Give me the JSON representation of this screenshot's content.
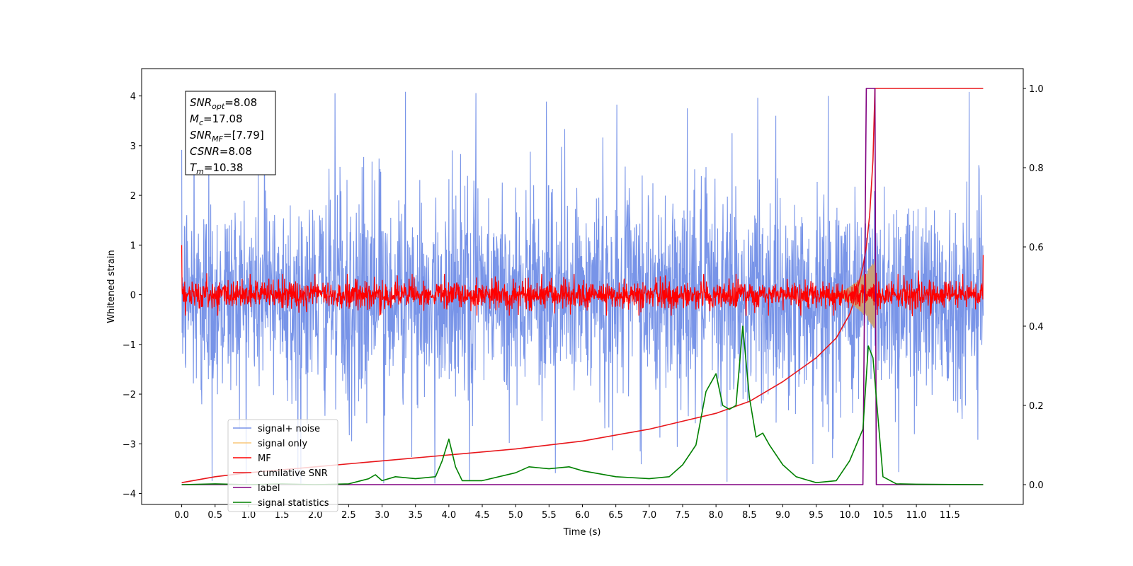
{
  "chart_data": {
    "type": "line",
    "title": "",
    "xlabel": "Time (s)",
    "ylabel": "Whitened strain",
    "xlim": [
      -0.6,
      12.6
    ],
    "ylim": [
      -4.22,
      4.55
    ],
    "y2lim": [
      -0.05,
      1.05
    ],
    "xticks": [
      "0.0",
      "0.5",
      "1.0",
      "1.5",
      "2.0",
      "2.5",
      "3.0",
      "3.5",
      "4.0",
      "4.5",
      "5.0",
      "5.5",
      "6.0",
      "6.5",
      "7.0",
      "7.5",
      "8.0",
      "8.5",
      "9.0",
      "9.5",
      "10.0",
      "10.5",
      "11.0",
      "11.5"
    ],
    "yticks": [
      "−4",
      "−3",
      "−2",
      "−1",
      "0",
      "1",
      "2",
      "3",
      "4"
    ],
    "y2ticks": [
      "0.0",
      "0.2",
      "0.4",
      "0.6",
      "0.8",
      "1.0"
    ],
    "grid": false,
    "legend_position": "lower-left",
    "annotation": {
      "lines": [
        {
          "main": "SNR",
          "sub": "opt",
          "rest": "=8.08"
        },
        {
          "main": "M",
          "sub": "c",
          "rest": "=17.08"
        },
        {
          "main": "SNR",
          "sub": "MF",
          "rest": "=[7.79]"
        },
        {
          "main": "CSNR",
          "sub": "",
          "rest": "=8.08"
        },
        {
          "main": "T",
          "sub": "m",
          "rest": "=10.38"
        }
      ]
    },
    "series": [
      {
        "name": "signal+ noise",
        "color": "#7894e8",
        "axis": "left",
        "kind": "noise",
        "x_range": [
          0,
          12
        ],
        "spread_sigma": 1.0,
        "extreme_range": [
          -3.8,
          4.15
        ]
      },
      {
        "name": "signal only",
        "color": "#f9c77a",
        "axis": "left",
        "kind": "chirp",
        "x_range": [
          9.6,
          10.38
        ],
        "peak_amplitude": 0.7
      },
      {
        "name": "MF",
        "color": "#ff0000",
        "axis": "left",
        "kind": "noise",
        "x_range": [
          0,
          12
        ],
        "spread_sigma": 0.15,
        "start_value": 1.0,
        "end_value": 0.8
      },
      {
        "name": "cumilative SNR",
        "color": "#e8161b",
        "axis": "right",
        "x": [
          0.0,
          0.5,
          1.0,
          2.0,
          3.0,
          4.0,
          5.0,
          6.0,
          7.0,
          7.5,
          8.0,
          8.5,
          9.0,
          9.5,
          9.8,
          10.0,
          10.1,
          10.2,
          10.25,
          10.3,
          10.35,
          10.38,
          12.0
        ],
        "values": [
          0.005,
          0.02,
          0.03,
          0.045,
          0.06,
          0.075,
          0.09,
          0.11,
          0.14,
          0.16,
          0.18,
          0.21,
          0.26,
          0.32,
          0.37,
          0.43,
          0.48,
          0.55,
          0.6,
          0.68,
          0.82,
          1.0,
          1.0
        ]
      },
      {
        "name": "label",
        "color": "#800080",
        "axis": "right",
        "x": [
          0.0,
          10.2,
          10.25,
          10.38,
          10.4,
          10.45,
          12.0
        ],
        "values": [
          0.0,
          0.0,
          1.0,
          1.0,
          0.0,
          0.0,
          0.0
        ]
      },
      {
        "name": "signal statistics",
        "color": "#008000",
        "axis": "right",
        "x": [
          0.0,
          0.5,
          1.0,
          1.5,
          2.0,
          2.5,
          2.8,
          2.9,
          3.0,
          3.2,
          3.5,
          3.8,
          3.9,
          4.0,
          4.1,
          4.2,
          4.5,
          5.0,
          5.2,
          5.5,
          5.8,
          6.0,
          6.5,
          7.0,
          7.3,
          7.5,
          7.7,
          7.85,
          8.0,
          8.1,
          8.2,
          8.3,
          8.4,
          8.5,
          8.6,
          8.7,
          8.8,
          9.0,
          9.2,
          9.5,
          9.8,
          10.0,
          10.2,
          10.28,
          10.35,
          10.5,
          10.7,
          11.0,
          12.0
        ],
        "values": [
          0.0,
          0.002,
          0.0,
          0.002,
          0.0,
          0.002,
          0.015,
          0.025,
          0.01,
          0.02,
          0.015,
          0.02,
          0.06,
          0.115,
          0.045,
          0.01,
          0.01,
          0.03,
          0.045,
          0.04,
          0.045,
          0.035,
          0.02,
          0.015,
          0.02,
          0.05,
          0.1,
          0.235,
          0.28,
          0.2,
          0.19,
          0.2,
          0.4,
          0.22,
          0.12,
          0.13,
          0.1,
          0.05,
          0.02,
          0.005,
          0.01,
          0.06,
          0.14,
          0.35,
          0.32,
          0.02,
          0.002,
          0.001,
          0.0
        ]
      }
    ]
  }
}
